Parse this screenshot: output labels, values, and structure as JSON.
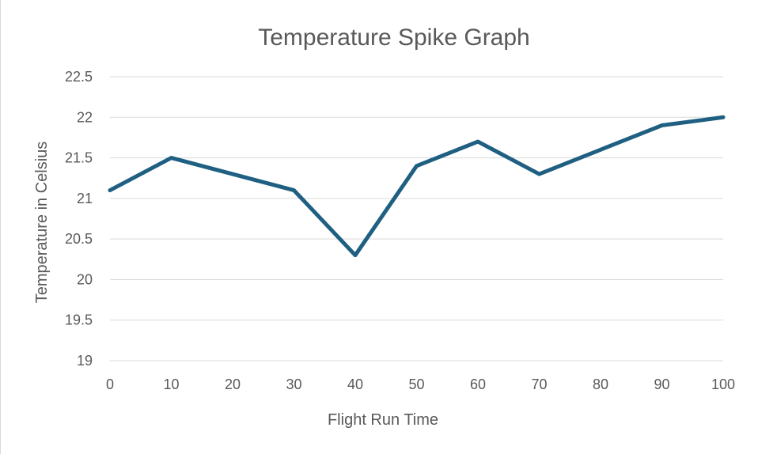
{
  "chart_data": {
    "type": "line",
    "title": "Temperature Spike Graph",
    "xlabel": "Flight Run Time",
    "ylabel": "Temperature in Celsius",
    "x": [
      0,
      10,
      20,
      30,
      40,
      50,
      60,
      70,
      80,
      90,
      100
    ],
    "series": [
      {
        "values": [
          21.1,
          21.5,
          21.3,
          21.1,
          20.3,
          21.4,
          21.7,
          21.3,
          21.6,
          21.9,
          22.0
        ],
        "color": "#1f5f82"
      }
    ],
    "xlim": [
      0,
      100
    ],
    "ylim": [
      19,
      22.5
    ],
    "xticks": [
      "0",
      "10",
      "20",
      "30",
      "40",
      "50",
      "60",
      "70",
      "80",
      "90",
      "100"
    ],
    "yticks": [
      "19",
      "19.5",
      "20",
      "20.5",
      "21",
      "21.5",
      "22",
      "22.5"
    ],
    "grid": "horizontal"
  }
}
